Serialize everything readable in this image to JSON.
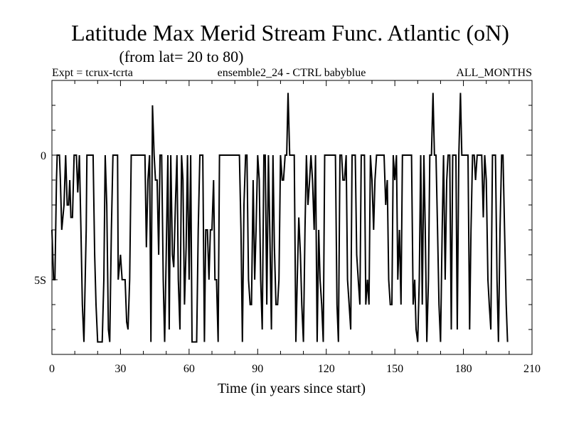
{
  "chart_data": {
    "type": "line",
    "title": "Latitude Max Merid Stream Func. Atlantic (oN)",
    "subtitle": "(from lat= 20 to 80)",
    "header_left": "Expt = tcrux-tcrta",
    "header_center": "ensemble2_24 - CTRL babyblue",
    "header_right": "ALL_MONTHS",
    "xlabel": "Time (in years since start)",
    "ylabel": "",
    "xlim": [
      0,
      210
    ],
    "ylim": [
      -8,
      3
    ],
    "x_ticks": [
      0,
      30,
      60,
      90,
      120,
      150,
      180,
      210
    ],
    "y_ticks": [
      {
        "value": 0,
        "label": "0"
      },
      {
        "value": -5,
        "label": "5S"
      }
    ],
    "x_minor_step": 10,
    "y_minor_step": 1,
    "grid": false,
    "series": [
      {
        "values": [
          [
            0,
            -3
          ],
          [
            0.7,
            -5
          ],
          [
            1.3,
            -5
          ],
          [
            2.0,
            -1
          ],
          [
            2.3,
            0
          ],
          [
            3.3,
            0
          ],
          [
            3.7,
            -1
          ],
          [
            4.3,
            -3
          ],
          [
            5.3,
            -2
          ],
          [
            6.0,
            0
          ],
          [
            6.7,
            -2
          ],
          [
            7.3,
            -2
          ],
          [
            7.8,
            -1
          ],
          [
            8.3,
            -2.5
          ],
          [
            9.0,
            -2.5
          ],
          [
            9.7,
            0
          ],
          [
            10.7,
            0
          ],
          [
            11.3,
            -1.5
          ],
          [
            12.0,
            0
          ],
          [
            12.7,
            -3
          ],
          [
            13.3,
            -6
          ],
          [
            14.0,
            -7.5
          ],
          [
            15.0,
            -3
          ],
          [
            15.3,
            0
          ],
          [
            18.0,
            0
          ],
          [
            18.7,
            -4
          ],
          [
            19.3,
            -6
          ],
          [
            20.0,
            -7.5
          ],
          [
            22.0,
            -7.5
          ],
          [
            22.7,
            -5
          ],
          [
            23.3,
            0
          ],
          [
            24.0,
            -2
          ],
          [
            24.7,
            -7
          ],
          [
            25.3,
            -7.5
          ],
          [
            26.0,
            -3
          ],
          [
            26.7,
            0
          ],
          [
            27.3,
            0
          ],
          [
            28.0,
            0
          ],
          [
            28.7,
            0
          ],
          [
            29.0,
            -5
          ],
          [
            30.0,
            -4
          ],
          [
            30.7,
            -5
          ],
          [
            32.0,
            -5
          ],
          [
            32.7,
            -6.7
          ],
          [
            33.3,
            -7
          ],
          [
            34.0,
            -5
          ],
          [
            34.7,
            0
          ],
          [
            40.7,
            0
          ],
          [
            41.3,
            -3.7
          ],
          [
            42.0,
            -1
          ],
          [
            42.7,
            0
          ],
          [
            43.3,
            -7.5
          ],
          [
            44.0,
            2
          ],
          [
            44.7,
            0
          ],
          [
            45.3,
            -1
          ],
          [
            46.0,
            -1
          ],
          [
            46.7,
            -4
          ],
          [
            47.3,
            0
          ],
          [
            48.0,
            0
          ],
          [
            48.7,
            -5
          ],
          [
            49.3,
            -7.5
          ],
          [
            50.0,
            -4
          ],
          [
            50.7,
            0
          ],
          [
            51.3,
            -7
          ],
          [
            52.0,
            0
          ],
          [
            52.7,
            -4
          ],
          [
            53.3,
            -4.5
          ],
          [
            54.0,
            -2
          ],
          [
            54.7,
            0
          ],
          [
            55.3,
            -5
          ],
          [
            56.0,
            -7
          ],
          [
            56.7,
            0
          ],
          [
            57.3,
            -1
          ],
          [
            58.0,
            -6
          ],
          [
            58.7,
            -3.7
          ],
          [
            59.3,
            0
          ],
          [
            60.0,
            -5
          ],
          [
            60.7,
            0
          ],
          [
            61.3,
            -7.5
          ],
          [
            63.3,
            -7.5
          ],
          [
            64.0,
            -3
          ],
          [
            64.7,
            0
          ],
          [
            66.0,
            0
          ],
          [
            66.7,
            -7.5
          ],
          [
            67.3,
            -3
          ],
          [
            68.0,
            -3
          ],
          [
            68.7,
            -5
          ],
          [
            69.3,
            -3
          ],
          [
            70.0,
            -3
          ],
          [
            70.7,
            -1
          ],
          [
            71.3,
            -5
          ],
          [
            72.0,
            -5
          ],
          [
            72.7,
            -7.5
          ],
          [
            73.3,
            0
          ],
          [
            82.0,
            0
          ],
          [
            82.7,
            -3
          ],
          [
            83.3,
            -7.5
          ],
          [
            84.0,
            -2
          ],
          [
            84.7,
            0
          ],
          [
            85.3,
            0
          ],
          [
            86.0,
            -5
          ],
          [
            86.7,
            -6
          ],
          [
            87.3,
            -6
          ],
          [
            88.0,
            -1
          ],
          [
            88.7,
            -5
          ],
          [
            89.3,
            -3
          ],
          [
            90.0,
            0
          ],
          [
            90.7,
            -1
          ],
          [
            91.3,
            -5
          ],
          [
            92.0,
            -7
          ],
          [
            92.7,
            0
          ],
          [
            93.3,
            0
          ],
          [
            94.0,
            -6
          ],
          [
            94.7,
            0
          ],
          [
            95.3,
            -3
          ],
          [
            96.0,
            -7
          ],
          [
            96.7,
            0
          ],
          [
            97.3,
            -3.7
          ],
          [
            98.0,
            -6
          ],
          [
            98.7,
            -6
          ],
          [
            99.3,
            -5
          ],
          [
            100.0,
            0
          ],
          [
            100.7,
            -1
          ],
          [
            101.3,
            -1
          ],
          [
            102.0,
            0
          ],
          [
            102.7,
            0
          ],
          [
            103.3,
            2.5
          ],
          [
            104.0,
            0
          ],
          [
            104.7,
            0
          ],
          [
            105.3,
            0
          ],
          [
            106.0,
            0
          ],
          [
            106.7,
            -7.5
          ],
          [
            107.3,
            -5
          ],
          [
            108.0,
            -2.5
          ],
          [
            108.7,
            -4
          ],
          [
            109.3,
            -6
          ],
          [
            110.0,
            -7.5
          ],
          [
            110.7,
            -3
          ],
          [
            111.3,
            0
          ],
          [
            112.0,
            -2
          ],
          [
            112.7,
            -1
          ],
          [
            113.3,
            0
          ],
          [
            114.0,
            -1
          ],
          [
            114.7,
            -3
          ],
          [
            115.3,
            0
          ],
          [
            116.0,
            -7.5
          ],
          [
            116.7,
            -3
          ],
          [
            117.3,
            -5
          ],
          [
            118.0,
            -6
          ],
          [
            118.7,
            -7.5
          ],
          [
            119.3,
            0
          ],
          [
            120.0,
            0
          ],
          [
            120.7,
            0
          ],
          [
            121.3,
            0
          ],
          [
            124.0,
            0
          ],
          [
            124.7,
            -6
          ],
          [
            125.3,
            -7.5
          ],
          [
            126.0,
            0
          ],
          [
            126.7,
            0
          ],
          [
            127.3,
            -1
          ],
          [
            128.0,
            -1
          ],
          [
            128.7,
            0
          ],
          [
            129.3,
            -5
          ],
          [
            130.0,
            -6
          ],
          [
            130.7,
            -7
          ],
          [
            131.3,
            0
          ],
          [
            132.0,
            0
          ],
          [
            132.7,
            0
          ],
          [
            133.3,
            -4
          ],
          [
            134.0,
            -5
          ],
          [
            134.7,
            -6
          ],
          [
            135.3,
            0
          ],
          [
            136.0,
            0
          ],
          [
            136.7,
            0
          ],
          [
            137.3,
            -6
          ],
          [
            138.0,
            -5
          ],
          [
            138.7,
            -6
          ],
          [
            139.3,
            0
          ],
          [
            140.0,
            -1
          ],
          [
            140.7,
            -3
          ],
          [
            141.3,
            -1
          ],
          [
            142.0,
            0
          ],
          [
            142.7,
            0
          ],
          [
            143.3,
            0
          ],
          [
            144.0,
            0
          ],
          [
            145.3,
            0
          ],
          [
            146.0,
            -2
          ],
          [
            146.7,
            -1
          ],
          [
            147.3,
            -5
          ],
          [
            148.0,
            -6
          ],
          [
            148.7,
            -6
          ],
          [
            149.3,
            0
          ],
          [
            150.0,
            -1
          ],
          [
            150.7,
            0
          ],
          [
            151.3,
            -5
          ],
          [
            152.0,
            -3
          ],
          [
            152.7,
            -6
          ],
          [
            153.3,
            0
          ],
          [
            154.0,
            0
          ],
          [
            154.7,
            0
          ],
          [
            155.3,
            0
          ],
          [
            156.0,
            0
          ],
          [
            156.7,
            0
          ],
          [
            157.3,
            0
          ],
          [
            158.0,
            -6
          ],
          [
            158.7,
            -5
          ],
          [
            159.3,
            -7
          ],
          [
            160.0,
            -7.5
          ],
          [
            160.7,
            -5
          ],
          [
            161.3,
            0
          ],
          [
            162.0,
            -6
          ],
          [
            162.7,
            0
          ],
          [
            163.3,
            -3
          ],
          [
            164.0,
            -7.5
          ],
          [
            164.7,
            -5
          ],
          [
            165.3,
            0
          ],
          [
            166.0,
            0
          ],
          [
            166.7,
            2.5
          ],
          [
            167.3,
            0
          ],
          [
            168.0,
            0
          ],
          [
            168.7,
            -3
          ],
          [
            169.3,
            -6
          ],
          [
            170.0,
            -7.5
          ],
          [
            170.7,
            -3
          ],
          [
            171.3,
            0
          ],
          [
            172.0,
            -5
          ],
          [
            172.7,
            -1
          ],
          [
            173.3,
            0
          ],
          [
            174.0,
            0
          ],
          [
            174.7,
            -7
          ],
          [
            175.3,
            0
          ],
          [
            176.0,
            0
          ],
          [
            176.7,
            0
          ],
          [
            177.3,
            -7
          ],
          [
            178.0,
            0
          ],
          [
            178.7,
            2.5
          ],
          [
            179.3,
            0
          ],
          [
            180.0,
            0
          ],
          [
            182.0,
            0
          ],
          [
            182.7,
            -7
          ],
          [
            183.3,
            -3
          ],
          [
            184.0,
            0
          ],
          [
            184.7,
            0
          ],
          [
            185.3,
            -1
          ],
          [
            186.0,
            0
          ],
          [
            186.7,
            0
          ],
          [
            187.3,
            0
          ],
          [
            188.0,
            0
          ],
          [
            188.7,
            -2.5
          ],
          [
            189.3,
            0
          ],
          [
            190.0,
            -1
          ],
          [
            190.7,
            -5
          ],
          [
            191.3,
            -6
          ],
          [
            192.0,
            -7
          ],
          [
            192.7,
            0
          ],
          [
            193.3,
            0
          ],
          [
            194.0,
            0
          ],
          [
            194.7,
            -5
          ],
          [
            195.3,
            -7.5
          ],
          [
            196.0,
            -3
          ],
          [
            196.7,
            0
          ],
          [
            197.3,
            0
          ],
          [
            198.0,
            -3
          ],
          [
            198.7,
            -6
          ],
          [
            199.3,
            -7.5
          ]
        ]
      }
    ]
  }
}
